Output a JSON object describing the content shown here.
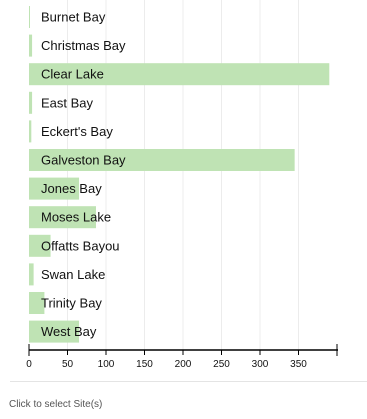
{
  "chart_data": {
    "type": "bar",
    "orientation": "horizontal",
    "categories": [
      "Burnet Bay",
      "Christmas Bay",
      "Clear Lake",
      "East Bay",
      "Eckert's Bay",
      "Galveston Bay",
      "Jones Bay",
      "Moses Lake",
      "Offatts Bayou",
      "Swan Lake",
      "Trinity Bay",
      "West Bay"
    ],
    "values": [
      1,
      4,
      390,
      4,
      3,
      345,
      65,
      87,
      28,
      6,
      20,
      65
    ],
    "xlim": [
      0,
      400
    ],
    "x_ticks": [
      0,
      50,
      100,
      150,
      200,
      250,
      300,
      350
    ],
    "grid": true,
    "bar_color": "#bfe3b4",
    "title": "",
    "xlabel": "",
    "ylabel": ""
  },
  "footer": {
    "hint": "Click to select Site(s)"
  }
}
